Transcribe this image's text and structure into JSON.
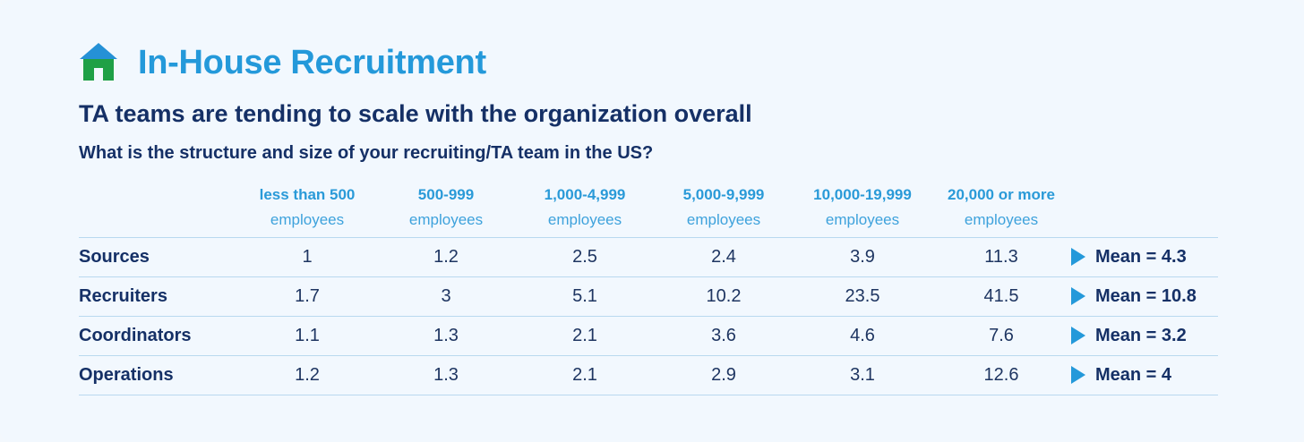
{
  "header": {
    "icon": "house-icon",
    "title": "In-House Recruitment",
    "subtitle": "TA teams are tending to scale with the organization overall",
    "question": "What is the structure and size of your recruiting/TA team in the US?"
  },
  "colors": {
    "title": "#2499da",
    "heading": "#153066",
    "column_header": "#2a9ad8",
    "rule": "#b9d9ef",
    "triangle": "#2499da",
    "house_roof": "#2591d6",
    "house_body": "#1fa046"
  },
  "chart_data": {
    "type": "table",
    "columns": [
      {
        "top": "less than 500",
        "bottom": "employees"
      },
      {
        "top": "500-999",
        "bottom": "employees"
      },
      {
        "top": "1,000-4,999",
        "bottom": "employees"
      },
      {
        "top": "5,000-9,999",
        "bottom": "employees"
      },
      {
        "top": "10,000-19,999",
        "bottom": "employees"
      },
      {
        "top": "20,000 or more",
        "bottom": "employees"
      }
    ],
    "rows": [
      {
        "label": "Sources",
        "values": [
          "1",
          "1.2",
          "2.5",
          "2.4",
          "3.9",
          "11.3"
        ],
        "mean": "Mean = 4.3"
      },
      {
        "label": "Recruiters",
        "values": [
          "1.7",
          "3",
          "5.1",
          "10.2",
          "23.5",
          "41.5"
        ],
        "mean": "Mean = 10.8"
      },
      {
        "label": "Coordinators",
        "values": [
          "1.1",
          "1.3",
          "2.1",
          "3.6",
          "4.6",
          "7.6"
        ],
        "mean": "Mean = 3.2"
      },
      {
        "label": "Operations",
        "values": [
          "1.2",
          "1.3",
          "2.1",
          "2.9",
          "3.1",
          "12.6"
        ],
        "mean": "Mean = 4"
      }
    ]
  }
}
